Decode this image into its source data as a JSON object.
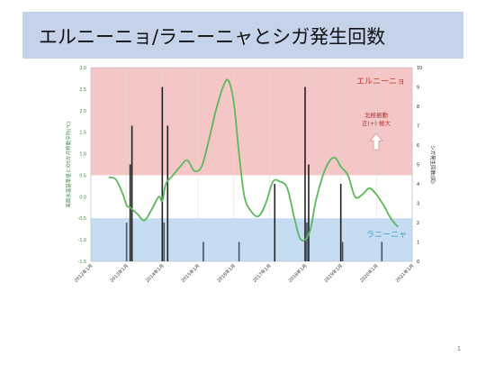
{
  "slide": {
    "title": "エルニーニョ/ラニーニャとシガ発生回数",
    "page_number": "1"
  },
  "colors": {
    "el_nino_band": "#f5c6c6",
    "la_nina_band": "#c6dcf2",
    "oni_line": "#5cb85c",
    "bar": "#222222",
    "bar_alt": "#3f5570",
    "arrow": "#d9a0a0",
    "el_nino_text": "#c0392b",
    "la_nina_text": "#3aa0c8"
  },
  "chart_data": {
    "type": "line",
    "title": "",
    "y_left": {
      "label": "海面水温基準値との5か月移動平均(℃)",
      "range": [
        -1.5,
        3.0
      ],
      "ticks": [
        "3.0",
        "2.5",
        "2.0",
        "1.5",
        "1.0",
        "0.5",
        "0.0",
        "-0.5",
        "-1.0",
        "-1.5"
      ]
    },
    "y_right": {
      "label": "シガ発生回数(回)",
      "range": [
        0,
        10
      ],
      "ticks": [
        "10",
        "9",
        "8",
        "7",
        "6",
        "5",
        "4",
        "3",
        "2",
        "1",
        "0"
      ]
    },
    "x_axis": {
      "range": [
        2012.0,
        2021.0
      ],
      "ticks": [
        "2012年1月",
        "2013年1月",
        "2014年1月",
        "2015年1月",
        "2016年1月",
        "2017年1月",
        "2018年1月",
        "2019年1月",
        "2020年1月",
        "2021年1月"
      ]
    },
    "bands": [
      {
        "label": "エルニーニョ",
        "from": 0.5,
        "to": 3.0
      },
      {
        "label": "ラニーニャ",
        "from": -1.5,
        "to": -0.5
      }
    ],
    "annotation": {
      "lines": [
        "北極振動",
        "正(+) 極大"
      ]
    },
    "series": [
      {
        "kind": "line",
        "axis": "left",
        "x": [
          2012.5,
          2012.7,
          2012.9,
          2013.0,
          2013.1,
          2013.3,
          2013.5,
          2013.7,
          2013.9,
          2014.0,
          2014.1,
          2014.3,
          2014.5,
          2014.7,
          2014.9,
          2015.1,
          2015.3,
          2015.5,
          2015.7,
          2015.85,
          2016.0,
          2016.15,
          2016.3,
          2016.5,
          2016.7,
          2016.9,
          2017.1,
          2017.3,
          2017.5,
          2017.7,
          2017.85,
          2018.0,
          2018.15,
          2018.3,
          2018.5,
          2018.7,
          2018.85,
          2019.0,
          2019.2,
          2019.4,
          2019.6,
          2019.8,
          2020.0,
          2020.2,
          2020.4,
          2020.6
        ],
        "y": [
          0.45,
          0.4,
          0.05,
          -0.2,
          -0.25,
          -0.4,
          -0.55,
          -0.3,
          0.0,
          -0.1,
          0.3,
          0.5,
          0.7,
          0.85,
          0.6,
          0.7,
          1.3,
          2.0,
          2.55,
          2.7,
          2.2,
          1.0,
          0.0,
          -0.35,
          -0.45,
          -0.15,
          0.35,
          0.35,
          0.2,
          -0.5,
          -0.95,
          -1.0,
          -0.75,
          -0.1,
          0.5,
          0.85,
          0.9,
          0.7,
          0.5,
          0.0,
          0.05,
          0.2,
          0.05,
          -0.2,
          -0.5,
          -0.7
        ]
      },
      {
        "kind": "bar",
        "axis": "right",
        "x": [
          2013.0,
          2013.1,
          2013.15,
          2014.0,
          2014.05,
          2014.15,
          2015.15,
          2016.15,
          2017.15,
          2018.0,
          2018.05,
          2018.1,
          2019.0,
          2019.05,
          2020.15
        ],
        "values": [
          2,
          5,
          7,
          9,
          2,
          7,
          1,
          1,
          4,
          9,
          2,
          5,
          4,
          1,
          1
        ]
      }
    ]
  }
}
